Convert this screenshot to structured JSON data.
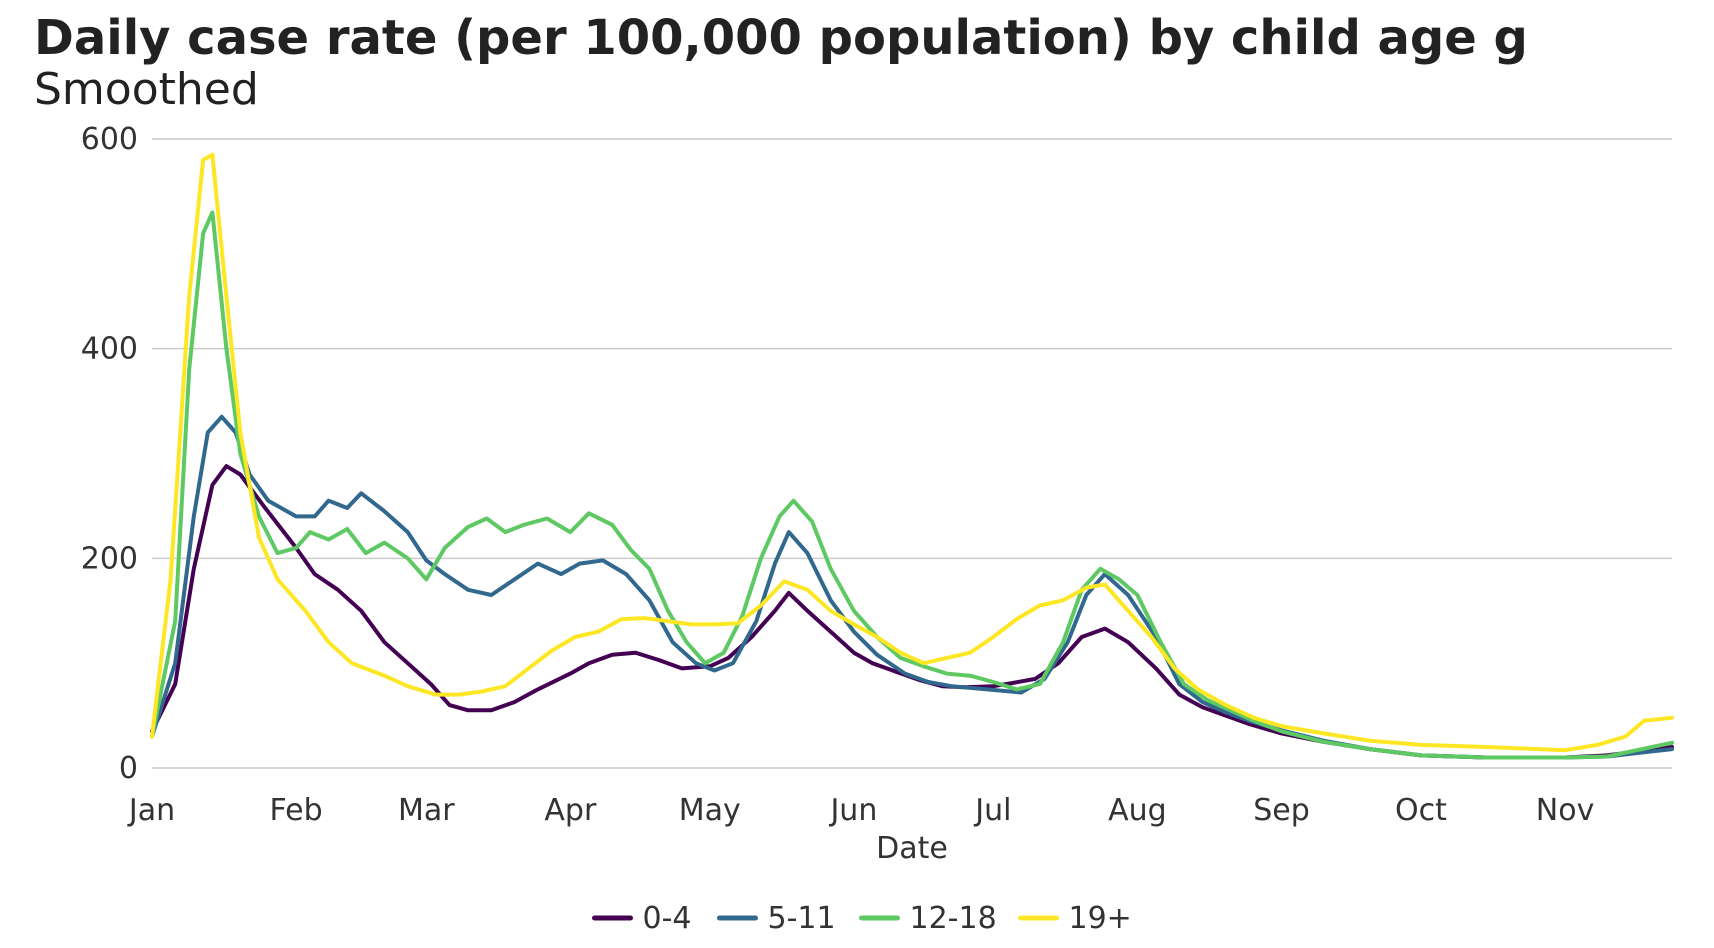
{
  "chart_data": {
    "type": "line",
    "title": "Daily case rate (per 100,000 population) by child age g",
    "subtitle": "Smoothed",
    "xlabel": "Date",
    "ylabel": "",
    "x_ticks": [
      "Jan",
      "Feb",
      "Mar",
      "Apr",
      "May",
      "Jun",
      "Jul",
      "Aug",
      "Sep",
      "Oct",
      "Nov"
    ],
    "y_ticks": [
      0,
      200,
      400,
      600
    ],
    "ylim": [
      0,
      600
    ],
    "xlim": [
      "Jan 1",
      "Nov 24"
    ],
    "grid": "horizontal",
    "legend": "bottom",
    "series": [
      {
        "name": "0-4",
        "color": "#440154",
        "points": [
          [
            "Jan 1",
            35
          ],
          [
            "Jan 6",
            80
          ],
          [
            "Jan 10",
            190
          ],
          [
            "Jan 14",
            270
          ],
          [
            "Jan 17",
            288
          ],
          [
            "Jan 20",
            280
          ],
          [
            "Jan 25",
            250
          ],
          [
            "Feb 1",
            210
          ],
          [
            "Feb 5",
            185
          ],
          [
            "Feb 10",
            170
          ],
          [
            "Feb 15",
            150
          ],
          [
            "Feb 20",
            120
          ],
          [
            "Feb 25",
            100
          ],
          [
            "Mar 2",
            80
          ],
          [
            "Mar 6",
            60
          ],
          [
            "Mar 10",
            55
          ],
          [
            "Mar 15",
            55
          ],
          [
            "Mar 20",
            63
          ],
          [
            "Mar 25",
            75
          ],
          [
            "Apr 1",
            90
          ],
          [
            "Apr 5",
            100
          ],
          [
            "Apr 10",
            108
          ],
          [
            "Apr 15",
            110
          ],
          [
            "Apr 20",
            103
          ],
          [
            "Apr 25",
            95
          ],
          [
            "May 1",
            97
          ],
          [
            "May 5",
            105
          ],
          [
            "May 10",
            125
          ],
          [
            "May 15",
            150
          ],
          [
            "May 18",
            167
          ],
          [
            "May 22",
            150
          ],
          [
            "May 27",
            130
          ],
          [
            "Jun 1",
            110
          ],
          [
            "Jun 5",
            100
          ],
          [
            "Jun 10",
            92
          ],
          [
            "Jun 15",
            84
          ],
          [
            "Jun 20",
            78
          ],
          [
            "Jun 25",
            77
          ],
          [
            "Jul 1",
            78
          ],
          [
            "Jul 5",
            81
          ],
          [
            "Jul 10",
            85
          ],
          [
            "Jul 15",
            100
          ],
          [
            "Jul 20",
            125
          ],
          [
            "Jul 25",
            133
          ],
          [
            "Jul 30",
            120
          ],
          [
            "Aug 5",
            95
          ],
          [
            "Aug 10",
            70
          ],
          [
            "Aug 15",
            58
          ],
          [
            "Aug 20",
            50
          ],
          [
            "Aug 25",
            42
          ],
          [
            "Sep 1",
            33
          ],
          [
            "Sep 10",
            25
          ],
          [
            "Sep 20",
            18
          ],
          [
            "Oct 1",
            12
          ],
          [
            "Oct 15",
            10
          ],
          [
            "Nov 1",
            10
          ],
          [
            "Nov 10",
            12
          ],
          [
            "Nov 24",
            20
          ]
        ]
      },
      {
        "name": "5-11",
        "color": "#31688e",
        "points": [
          [
            "Jan 1",
            30
          ],
          [
            "Jan 6",
            100
          ],
          [
            "Jan 10",
            240
          ],
          [
            "Jan 13",
            320
          ],
          [
            "Jan 16",
            335
          ],
          [
            "Jan 19",
            320
          ],
          [
            "Jan 22",
            280
          ],
          [
            "Jan 26",
            255
          ],
          [
            "Feb 1",
            240
          ],
          [
            "Feb 5",
            240
          ],
          [
            "Feb 8",
            255
          ],
          [
            "Feb 12",
            248
          ],
          [
            "Feb 15",
            262
          ],
          [
            "Feb 20",
            245
          ],
          [
            "Feb 25",
            225
          ],
          [
            "Mar 1",
            198
          ],
          [
            "Mar 5",
            185
          ],
          [
            "Mar 10",
            170
          ],
          [
            "Mar 15",
            165
          ],
          [
            "Mar 20",
            180
          ],
          [
            "Mar 25",
            195
          ],
          [
            "Mar 30",
            185
          ],
          [
            "Apr 3",
            195
          ],
          [
            "Apr 8",
            198
          ],
          [
            "Apr 13",
            185
          ],
          [
            "Apr 18",
            160
          ],
          [
            "Apr 23",
            120
          ],
          [
            "Apr 28",
            100
          ],
          [
            "May 2",
            93
          ],
          [
            "May 6",
            100
          ],
          [
            "May 11",
            140
          ],
          [
            "May 15",
            195
          ],
          [
            "May 18",
            225
          ],
          [
            "May 22",
            205
          ],
          [
            "May 27",
            160
          ],
          [
            "Jun 1",
            130
          ],
          [
            "Jun 6",
            108
          ],
          [
            "Jun 12",
            90
          ],
          [
            "Jun 17",
            82
          ],
          [
            "Jun 22",
            78
          ],
          [
            "Jun 27",
            76
          ],
          [
            "Jul 2",
            74
          ],
          [
            "Jul 7",
            72
          ],
          [
            "Jul 12",
            85
          ],
          [
            "Jul 17",
            120
          ],
          [
            "Jul 21",
            165
          ],
          [
            "Jul 25",
            185
          ],
          [
            "Jul 30",
            165
          ],
          [
            "Aug 5",
            125
          ],
          [
            "Aug 10",
            80
          ],
          [
            "Aug 15",
            63
          ],
          [
            "Aug 20",
            53
          ],
          [
            "Aug 25",
            45
          ],
          [
            "Sep 1",
            36
          ],
          [
            "Sep 10",
            26
          ],
          [
            "Sep 20",
            18
          ],
          [
            "Oct 1",
            12
          ],
          [
            "Oct 15",
            10
          ],
          [
            "Nov 1",
            10
          ],
          [
            "Nov 10",
            11
          ],
          [
            "Nov 24",
            18
          ]
        ]
      },
      {
        "name": "12-18",
        "color": "#5ec962",
        "points": [
          [
            "Jan 1",
            30
          ],
          [
            "Jan 6",
            140
          ],
          [
            "Jan 9",
            380
          ],
          [
            "Jan 12",
            510
          ],
          [
            "Jan 14",
            530
          ],
          [
            "Jan 17",
            400
          ],
          [
            "Jan 20",
            300
          ],
          [
            "Jan 24",
            240
          ],
          [
            "Jan 28",
            205
          ],
          [
            "Feb 1",
            210
          ],
          [
            "Feb 4",
            225
          ],
          [
            "Feb 8",
            218
          ],
          [
            "Feb 12",
            228
          ],
          [
            "Feb 16",
            205
          ],
          [
            "Feb 20",
            215
          ],
          [
            "Feb 25",
            200
          ],
          [
            "Mar 1",
            180
          ],
          [
            "Mar 5",
            210
          ],
          [
            "Mar 10",
            230
          ],
          [
            "Mar 14",
            238
          ],
          [
            "Mar 18",
            225
          ],
          [
            "Mar 22",
            232
          ],
          [
            "Mar 27",
            238
          ],
          [
            "Apr 1",
            225
          ],
          [
            "Apr 5",
            243
          ],
          [
            "Apr 10",
            232
          ],
          [
            "Apr 14",
            208
          ],
          [
            "Apr 18",
            190
          ],
          [
            "Apr 22",
            150
          ],
          [
            "Apr 26",
            120
          ],
          [
            "Apr 30",
            100
          ],
          [
            "May 4",
            110
          ],
          [
            "May 8",
            145
          ],
          [
            "May 12",
            200
          ],
          [
            "May 16",
            240
          ],
          [
            "May 19",
            255
          ],
          [
            "May 23",
            235
          ],
          [
            "May 27",
            190
          ],
          [
            "Jun 1",
            150
          ],
          [
            "Jun 6",
            125
          ],
          [
            "Jun 11",
            105
          ],
          [
            "Jun 16",
            97
          ],
          [
            "Jun 21",
            90
          ],
          [
            "Jun 26",
            88
          ],
          [
            "Jul 1",
            82
          ],
          [
            "Jul 6",
            75
          ],
          [
            "Jul 11",
            80
          ],
          [
            "Jul 16",
            120
          ],
          [
            "Jul 20",
            170
          ],
          [
            "Jul 24",
            190
          ],
          [
            "Jul 28",
            180
          ],
          [
            "Aug 1",
            165
          ],
          [
            "Aug 6",
            120
          ],
          [
            "Aug 11",
            80
          ],
          [
            "Aug 16",
            65
          ],
          [
            "Aug 21",
            55
          ],
          [
            "Aug 26",
            45
          ],
          [
            "Sep 1",
            35
          ],
          [
            "Sep 10",
            25
          ],
          [
            "Sep 20",
            18
          ],
          [
            "Oct 1",
            12
          ],
          [
            "Oct 15",
            10
          ],
          [
            "Nov 1",
            10
          ],
          [
            "Nov 10",
            11
          ],
          [
            "Nov 24",
            24
          ]
        ]
      },
      {
        "name": "19+",
        "color": "#fde725",
        "points": [
          [
            "Jan 1",
            30
          ],
          [
            "Jan 5",
            180
          ],
          [
            "Jan 9",
            450
          ],
          [
            "Jan 12",
            580
          ],
          [
            "Jan 14",
            585
          ],
          [
            "Jan 17",
            450
          ],
          [
            "Jan 20",
            320
          ],
          [
            "Jan 24",
            220
          ],
          [
            "Jan 28",
            180
          ],
          [
            "Feb 3",
            150
          ],
          [
            "Feb 8",
            120
          ],
          [
            "Feb 13",
            100
          ],
          [
            "Feb 20",
            88
          ],
          [
            "Feb 25",
            78
          ],
          [
            "Mar 3",
            70
          ],
          [
            "Mar 8",
            70
          ],
          [
            "Mar 13",
            73
          ],
          [
            "Mar 18",
            78
          ],
          [
            "Mar 23",
            95
          ],
          [
            "Mar 28",
            112
          ],
          [
            "Apr 2",
            125
          ],
          [
            "Apr 7",
            130
          ],
          [
            "Apr 12",
            142
          ],
          [
            "Apr 17",
            143
          ],
          [
            "Apr 22",
            140
          ],
          [
            "Apr 27",
            137
          ],
          [
            "May 2",
            137
          ],
          [
            "May 7",
            138
          ],
          [
            "May 12",
            155
          ],
          [
            "May 17",
            178
          ],
          [
            "May 22",
            170
          ],
          [
            "May 27",
            150
          ],
          [
            "Jun 1",
            137
          ],
          [
            "Jun 6",
            125
          ],
          [
            "Jun 11",
            110
          ],
          [
            "Jun 16",
            100
          ],
          [
            "Jun 21",
            105
          ],
          [
            "Jun 26",
            110
          ],
          [
            "Jul 1",
            125
          ],
          [
            "Jul 6",
            142
          ],
          [
            "Jul 11",
            155
          ],
          [
            "Jul 16",
            160
          ],
          [
            "Jul 21",
            172
          ],
          [
            "Jul 25",
            175
          ],
          [
            "Jul 30",
            150
          ],
          [
            "Aug 4",
            125
          ],
          [
            "Aug 9",
            95
          ],
          [
            "Aug 14",
            75
          ],
          [
            "Aug 20",
            60
          ],
          [
            "Aug 26",
            48
          ],
          [
            "Sep 1",
            40
          ],
          [
            "Sep 10",
            33
          ],
          [
            "Sep 20",
            26
          ],
          [
            "Oct 1",
            22
          ],
          [
            "Oct 15",
            20
          ],
          [
            "Nov 1",
            17
          ],
          [
            "Nov 8",
            22
          ],
          [
            "Nov 14",
            30
          ],
          [
            "Nov 18",
            45
          ],
          [
            "Nov 24",
            48
          ]
        ]
      }
    ]
  }
}
